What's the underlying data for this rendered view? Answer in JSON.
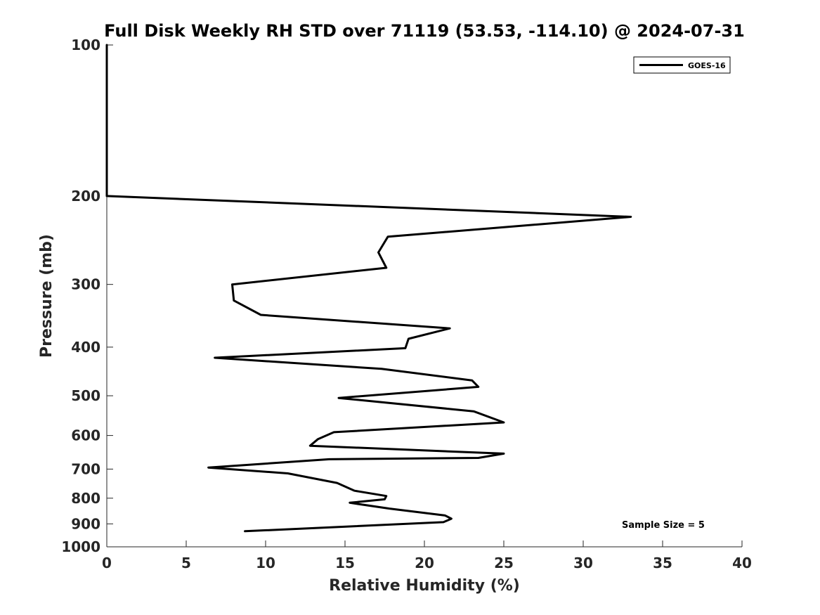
{
  "chart_data": {
    "type": "line",
    "title": "Full Disk Weekly RH STD over 71119 (53.53, -114.10) @ 2024-07-31",
    "xlabel": "Relative Humidity (%)",
    "ylabel": "Pressure (mb)",
    "xlim": [
      0,
      40
    ],
    "ylim": [
      100,
      1000
    ],
    "y_scale": "log",
    "y_reversed": true,
    "x_ticks": [
      0,
      5,
      10,
      15,
      20,
      25,
      30,
      35,
      40
    ],
    "x_tick_labels": [
      "0",
      "5",
      "10",
      "15",
      "20",
      "25",
      "30",
      "35",
      "40"
    ],
    "y_ticks": [
      100,
      200,
      300,
      400,
      500,
      600,
      700,
      800,
      900,
      1000
    ],
    "y_tick_labels": [
      "100",
      "200",
      "300",
      "400",
      "500",
      "600",
      "700",
      "800",
      "900",
      "1000"
    ],
    "grid": false,
    "legend_position": "top-right",
    "annotation": "Sample Size = 5",
    "series": [
      {
        "name": "GOES-16",
        "color": "#000000",
        "x": [
          0,
          0,
          0,
          0,
          0,
          0,
          0,
          0,
          0,
          0,
          0,
          0,
          33,
          17.7,
          17.1,
          17.6,
          7.9,
          8.0,
          9.7,
          21.6,
          19.0,
          18.8,
          6.8,
          17.3,
          23.0,
          23.4,
          14.6,
          23.1,
          25.0,
          14.3,
          13.3,
          12.8,
          25.0,
          23.4,
          14.0,
          6.4,
          11.4,
          14.5,
          15.6,
          17.6,
          17.5,
          15.3,
          17.8,
          21.3,
          21.7,
          21.2,
          8.7
        ],
        "y": [
          100,
          110,
          120,
          130,
          140,
          150,
          160,
          170,
          175,
          180,
          190,
          200,
          220,
          241,
          259,
          278,
          300,
          323,
          345,
          367,
          385,
          402,
          420,
          442,
          466,
          480,
          505,
          537,
          565,
          591,
          610,
          629,
          652,
          665,
          669,
          695,
          714,
          746,
          773,
          792,
          804,
          817,
          839,
          866,
          879,
          893,
          931
        ]
      }
    ]
  }
}
